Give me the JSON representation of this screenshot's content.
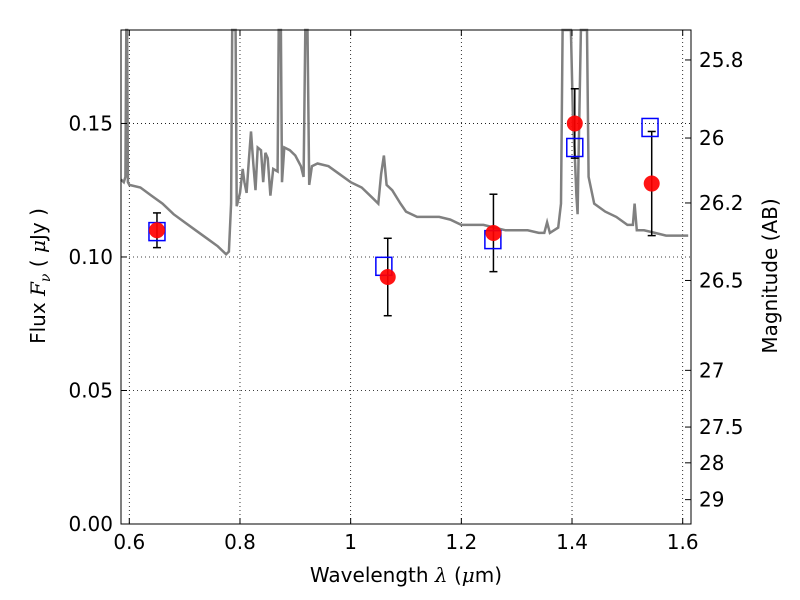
{
  "chart_data": {
    "type": "scatter",
    "xlabel_parts": {
      "text": "Wavelength  ",
      "symbol": "λ",
      "unit_open": " (",
      "unit_symbol": "μ",
      "unit_close": "m)"
    },
    "ylabel_parts": {
      "text": "Flux  ",
      "symbol": "F",
      "subscript": "ν",
      "unit_open": "  ( ",
      "unit_symbol": "μ",
      "unit_close": "Jy )"
    },
    "ylabel_right": "Magnitude (AB)",
    "xlim": [
      0.585,
      1.615
    ],
    "ylim": [
      0.0,
      0.185
    ],
    "grid": true,
    "grid_style": "dotted",
    "x_ticks": [
      {
        "value": 0.6,
        "label": "0.6"
      },
      {
        "value": 0.8,
        "label": "0.8"
      },
      {
        "value": 1.0,
        "label": "1"
      },
      {
        "value": 1.2,
        "label": "1.2"
      },
      {
        "value": 1.4,
        "label": "1.4"
      },
      {
        "value": 1.6,
        "label": "1.6"
      }
    ],
    "y_ticks": [
      {
        "value": 0.0,
        "label": "0.00"
      },
      {
        "value": 0.05,
        "label": "0.05"
      },
      {
        "value": 0.1,
        "label": "0.10"
      },
      {
        "value": 0.15,
        "label": "0.15"
      }
    ],
    "right_ticks": [
      {
        "mag": 25.8,
        "label": "25.8"
      },
      {
        "mag": 26.0,
        "label": "26"
      },
      {
        "mag": 26.2,
        "label": "26.2"
      },
      {
        "mag": 26.5,
        "label": "26.5"
      },
      {
        "mag": 27.0,
        "label": "27"
      },
      {
        "mag": 27.5,
        "label": "27.5"
      },
      {
        "mag": 28.0,
        "label": "28"
      },
      {
        "mag": 29.0,
        "label": "29"
      }
    ],
    "series": [
      {
        "kind": "model-spectrum",
        "color": "#808080",
        "points": [
          [
            0.585,
            0.129
          ],
          [
            0.59,
            0.128
          ],
          [
            0.593,
            0.13
          ],
          [
            0.5945,
            0.185
          ],
          [
            0.596,
            0.185
          ],
          [
            0.5975,
            0.128
          ],
          [
            0.6,
            0.127
          ],
          [
            0.62,
            0.126
          ],
          [
            0.64,
            0.123
          ],
          [
            0.66,
            0.12
          ],
          [
            0.68,
            0.116
          ],
          [
            0.7,
            0.113
          ],
          [
            0.72,
            0.11
          ],
          [
            0.74,
            0.107
          ],
          [
            0.76,
            0.104
          ],
          [
            0.775,
            0.101
          ],
          [
            0.78,
            0.102
          ],
          [
            0.784,
            0.12
          ],
          [
            0.786,
            0.185
          ],
          [
            0.792,
            0.185
          ],
          [
            0.794,
            0.119
          ],
          [
            0.8,
            0.124
          ],
          [
            0.805,
            0.133
          ],
          [
            0.808,
            0.128
          ],
          [
            0.812,
            0.124
          ],
          [
            0.816,
            0.136
          ],
          [
            0.82,
            0.147
          ],
          [
            0.824,
            0.135
          ],
          [
            0.828,
            0.125
          ],
          [
            0.832,
            0.141
          ],
          [
            0.838,
            0.14
          ],
          [
            0.842,
            0.128
          ],
          [
            0.846,
            0.139
          ],
          [
            0.85,
            0.137
          ],
          [
            0.855,
            0.123
          ],
          [
            0.86,
            0.133
          ],
          [
            0.868,
            0.132
          ],
          [
            0.87,
            0.185
          ],
          [
            0.874,
            0.185
          ],
          [
            0.876,
            0.128
          ],
          [
            0.88,
            0.141
          ],
          [
            0.89,
            0.14
          ],
          [
            0.9,
            0.138
          ],
          [
            0.91,
            0.134
          ],
          [
            0.915,
            0.13
          ],
          [
            0.918,
            0.185
          ],
          [
            0.922,
            0.185
          ],
          [
            0.925,
            0.127
          ],
          [
            0.93,
            0.134
          ],
          [
            0.94,
            0.135
          ],
          [
            0.96,
            0.134
          ],
          [
            0.98,
            0.131
          ],
          [
            1.0,
            0.128
          ],
          [
            1.02,
            0.126
          ],
          [
            1.04,
            0.122
          ],
          [
            1.05,
            0.12
          ],
          [
            1.055,
            0.131
          ],
          [
            1.06,
            0.138
          ],
          [
            1.065,
            0.127
          ],
          [
            1.075,
            0.125
          ],
          [
            1.09,
            0.12
          ],
          [
            1.1,
            0.117
          ],
          [
            1.12,
            0.115
          ],
          [
            1.14,
            0.115
          ],
          [
            1.16,
            0.115
          ],
          [
            1.18,
            0.114
          ],
          [
            1.2,
            0.112
          ],
          [
            1.22,
            0.112
          ],
          [
            1.24,
            0.112
          ],
          [
            1.26,
            0.111
          ],
          [
            1.28,
            0.11
          ],
          [
            1.3,
            0.11
          ],
          [
            1.32,
            0.11
          ],
          [
            1.34,
            0.109
          ],
          [
            1.35,
            0.109
          ],
          [
            1.355,
            0.113
          ],
          [
            1.36,
            0.109
          ],
          [
            1.375,
            0.111
          ],
          [
            1.38,
            0.12
          ],
          [
            1.383,
            0.185
          ],
          [
            1.388,
            0.185
          ],
          [
            1.392,
            0.185
          ],
          [
            1.398,
            0.185
          ],
          [
            1.402,
            0.15
          ],
          [
            1.405,
            0.138
          ],
          [
            1.408,
            0.123
          ],
          [
            1.41,
            0.116
          ],
          [
            1.412,
            0.14
          ],
          [
            1.416,
            0.185
          ],
          [
            1.427,
            0.185
          ],
          [
            1.43,
            0.13
          ],
          [
            1.44,
            0.12
          ],
          [
            1.46,
            0.117
          ],
          [
            1.48,
            0.115
          ],
          [
            1.5,
            0.112
          ],
          [
            1.51,
            0.112
          ],
          [
            1.513,
            0.12
          ],
          [
            1.517,
            0.11
          ],
          [
            1.53,
            0.11
          ],
          [
            1.55,
            0.109
          ],
          [
            1.57,
            0.108
          ],
          [
            1.59,
            0.108
          ],
          [
            1.61,
            0.108
          ]
        ]
      },
      {
        "kind": "observed",
        "color": "#ff0000",
        "errorbar_color": "#000000",
        "points": [
          {
            "x": 0.65,
            "y": 0.11,
            "err": 0.0065
          },
          {
            "x": 1.067,
            "y": 0.0925,
            "err": 0.0145
          },
          {
            "x": 1.258,
            "y": 0.109,
            "err": 0.0145
          },
          {
            "x": 1.405,
            "y": 0.15,
            "err": 0.013
          },
          {
            "x": 1.544,
            "y": 0.1275,
            "err": 0.0195
          }
        ]
      },
      {
        "kind": "model-photometry",
        "color": "#0000ff",
        "points": [
          {
            "x": 0.65,
            "y": 0.1095
          },
          {
            "x": 1.06,
            "y": 0.0965
          },
          {
            "x": 1.257,
            "y": 0.1065
          },
          {
            "x": 1.405,
            "y": 0.141
          },
          {
            "x": 1.541,
            "y": 0.1485
          }
        ]
      }
    ]
  }
}
